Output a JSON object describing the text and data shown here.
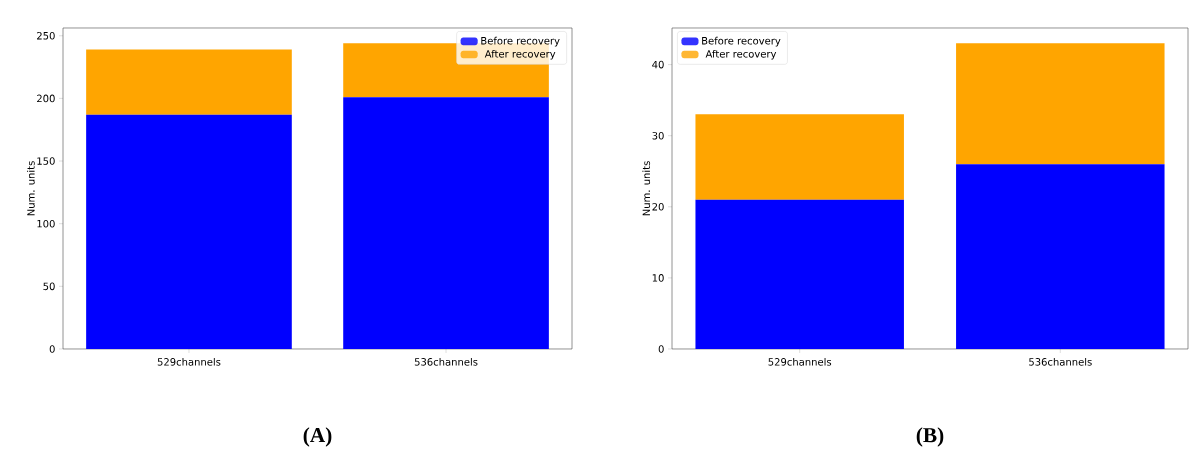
{
  "chart_data": [
    {
      "type": "bar",
      "stacked": true,
      "categories": [
        "529channels",
        "536channels"
      ],
      "ylabel": "Num. units",
      "ylim": [
        0,
        256.2
      ],
      "yticks": [
        0,
        50,
        100,
        150,
        200,
        250
      ],
      "legend": "top right",
      "annotations": [
        "(A)"
      ],
      "series": [
        {
          "name": "Before recovery",
          "color": "#0000ff",
          "values": [
            187,
            201
          ]
        },
        {
          "name": "After recovery",
          "color": "#ffa500",
          "values": [
            52,
            43
          ]
        }
      ]
    },
    {
      "type": "bar",
      "stacked": true,
      "categories": [
        "529channels",
        "536channels"
      ],
      "ylabel": "Num. units",
      "ylim": [
        0,
        45.15
      ],
      "yticks": [
        0,
        10,
        20,
        30,
        40
      ],
      "legend": "top left",
      "annotations": [
        "(B)"
      ],
      "series": [
        {
          "name": "Before recovery",
          "color": "#0000ff",
          "values": [
            21,
            26
          ]
        },
        {
          "name": "After recovery",
          "color": "#ffa500",
          "values": [
            12,
            17
          ]
        }
      ]
    }
  ]
}
